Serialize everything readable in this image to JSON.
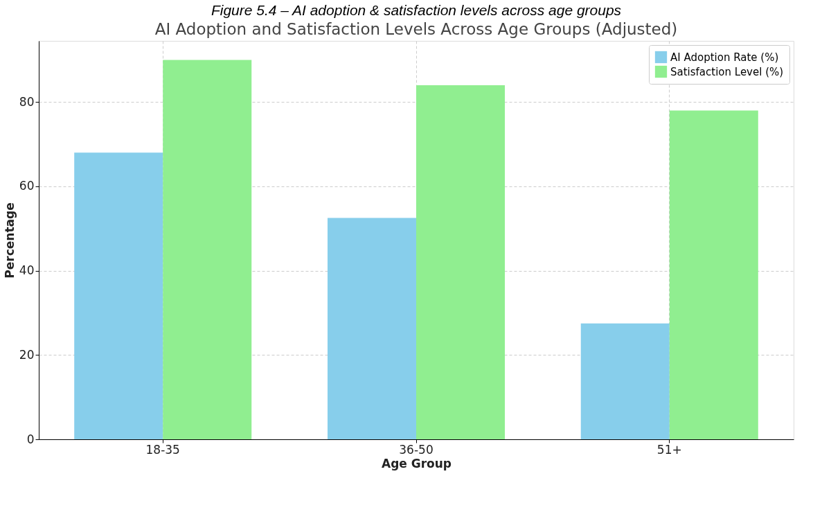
{
  "chart_data": {
    "type": "bar",
    "title": "Figure 5.4 – AI adoption & satisfaction levels across age groups",
    "subtitle": "AI Adoption and Satisfaction Levels Across Age Groups (Adjusted)",
    "xlabel": "Age Group",
    "ylabel": "Percentage",
    "categories": [
      "18-35",
      "36-50",
      "51+"
    ],
    "series": [
      {
        "name": "AI Adoption Rate (%)",
        "color": "#87ceeb",
        "values": [
          68,
          52.5,
          27.5
        ]
      },
      {
        "name": "Satisfaction Level (%)",
        "color": "#90ee90",
        "values": [
          90,
          84,
          78
        ]
      }
    ],
    "ylim": [
      0,
      94.5
    ],
    "yticks": [
      0,
      20,
      40,
      60,
      80
    ],
    "grid": true,
    "legend": "top right"
  }
}
